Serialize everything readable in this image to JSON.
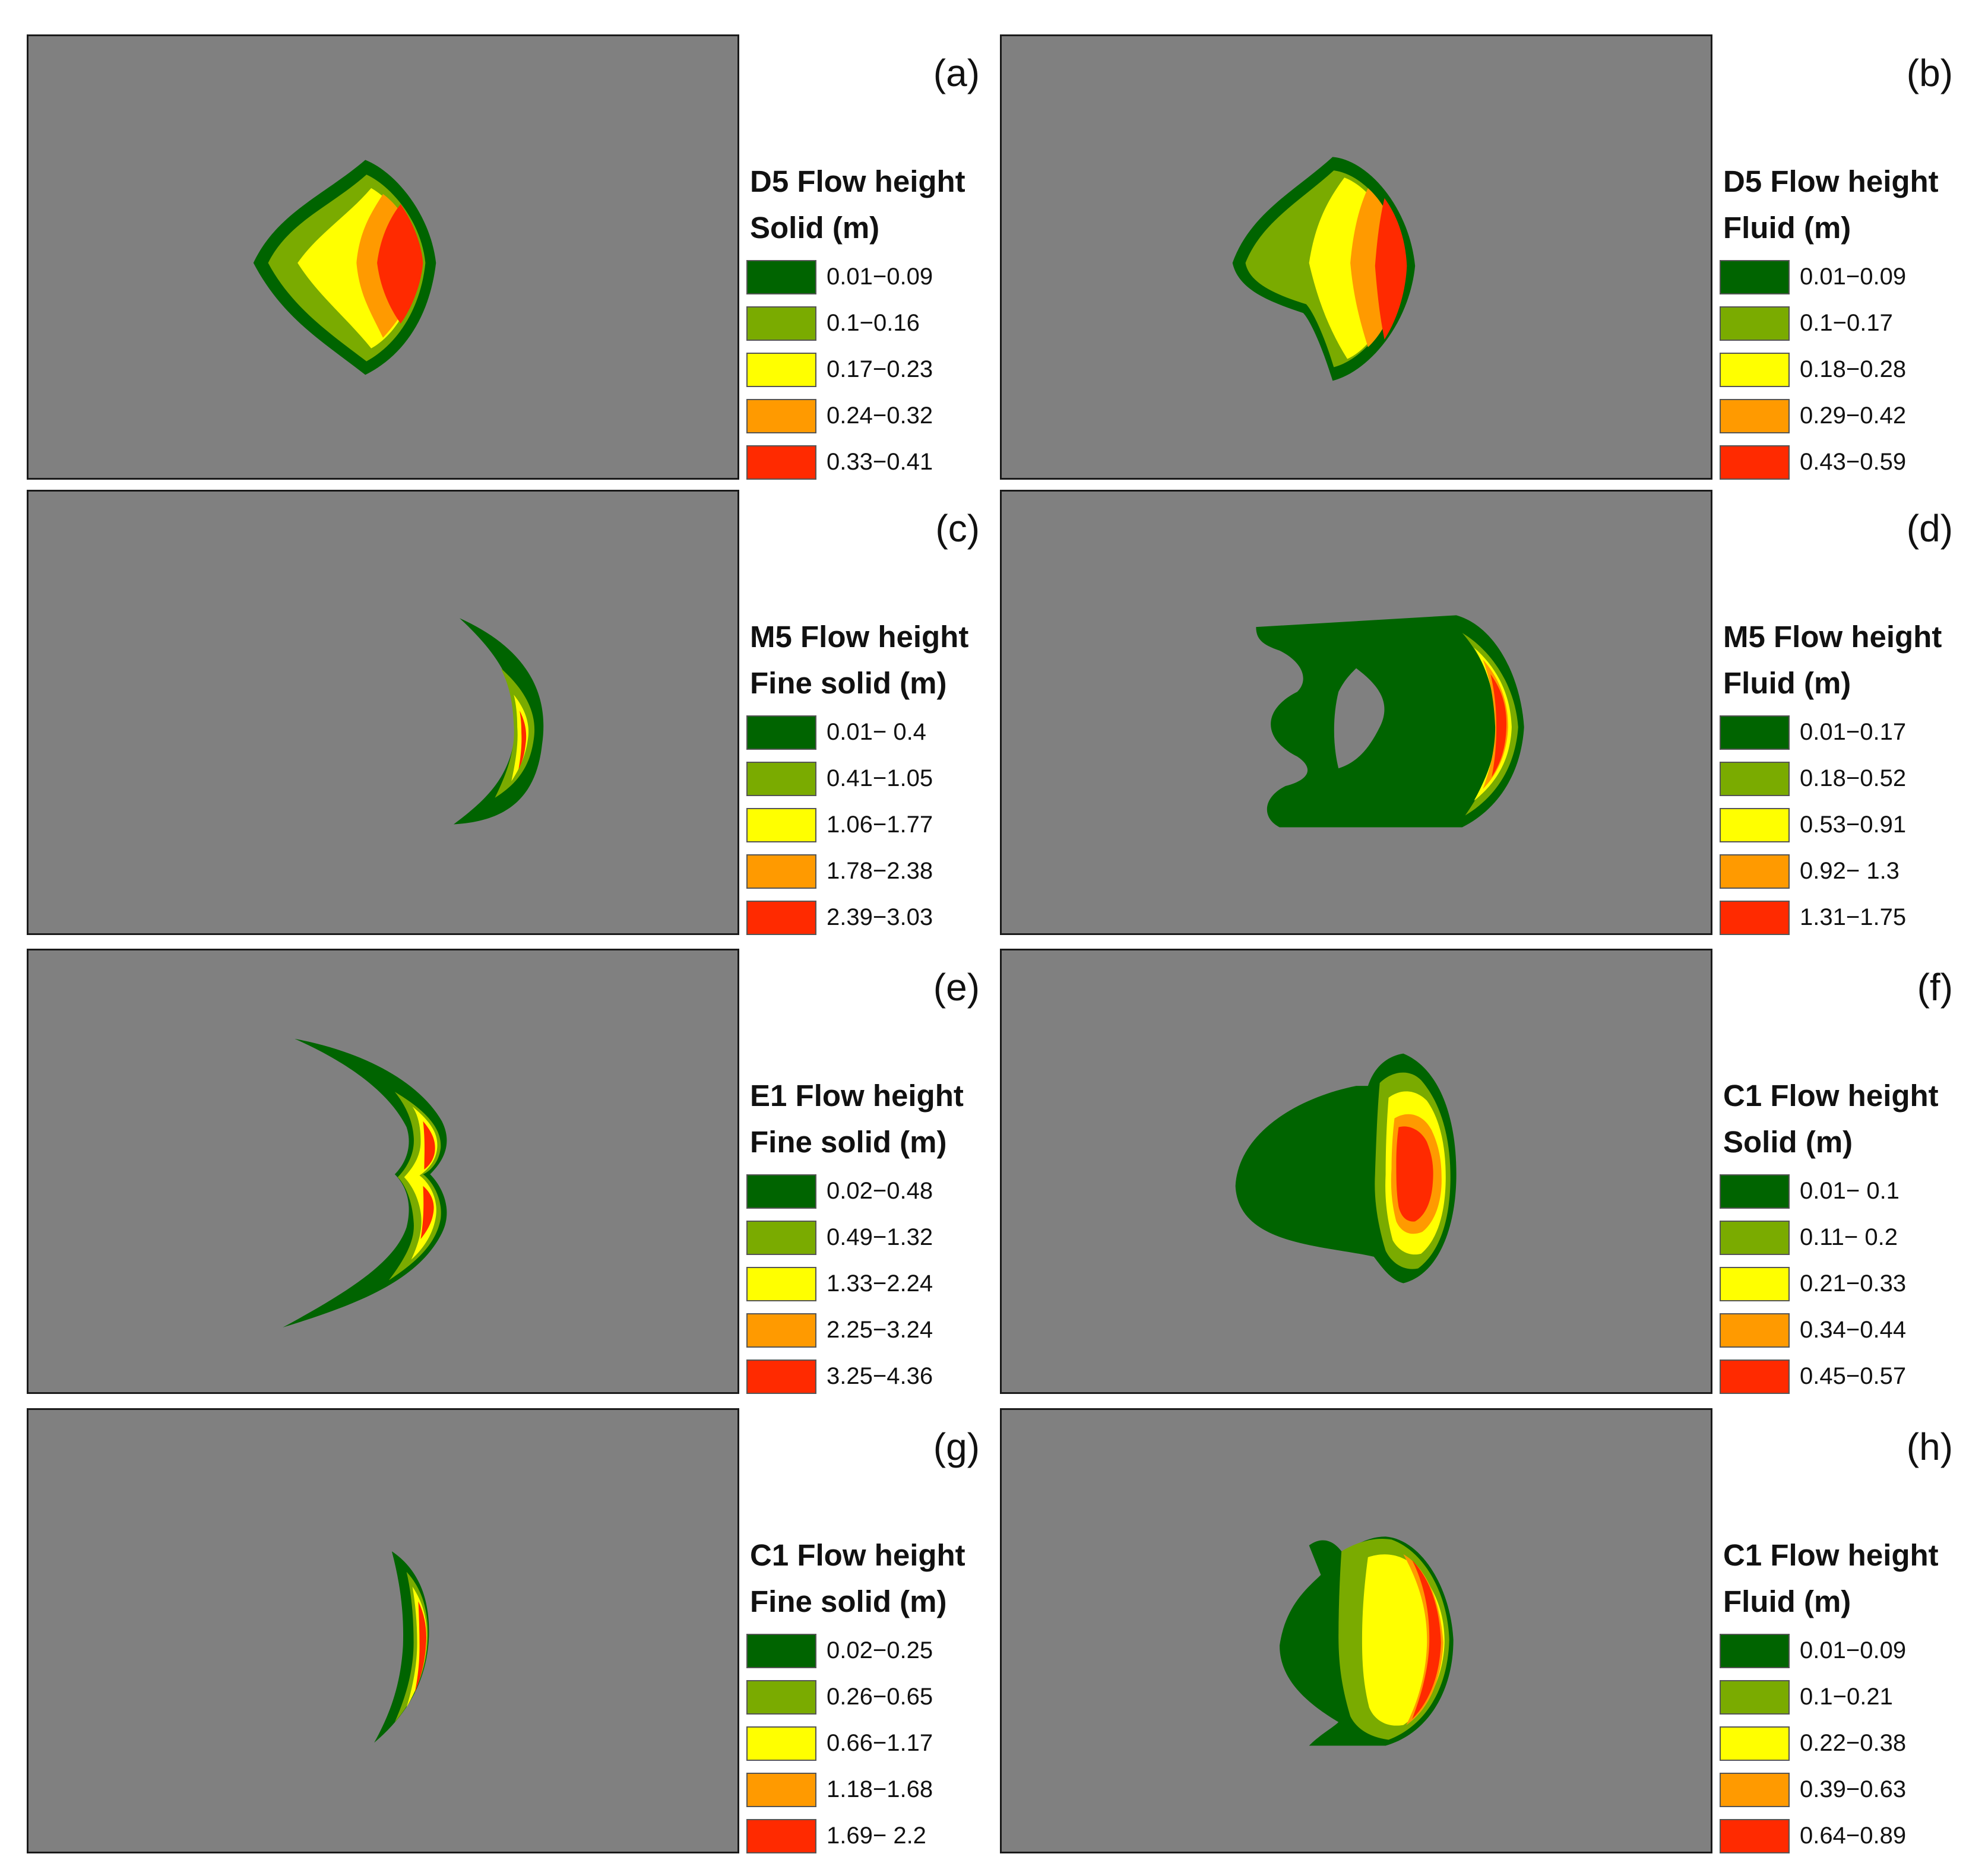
{
  "colors": {
    "background": "#808080",
    "class_colors": [
      "#006400",
      "#7aab00",
      "#ffff00",
      "#ff9a00",
      "#ff2a00"
    ]
  },
  "panels": [
    {
      "label": "(a)",
      "legend_title": "D5 Flow height",
      "legend_subtitle": "Solid (m)",
      "classes": [
        "0.01−0.09",
        "0.1−0.16",
        "0.17−0.23",
        "0.24−0.32",
        "0.33−0.41"
      ]
    },
    {
      "label": "(b)",
      "legend_title": "D5 Flow height",
      "legend_subtitle": "Fluid (m)",
      "classes": [
        "0.01−0.09",
        "0.1−0.17",
        "0.18−0.28",
        "0.29−0.42",
        "0.43−0.59"
      ]
    },
    {
      "label": "(c)",
      "legend_title": "M5 Flow height",
      "legend_subtitle": "Fine solid (m)",
      "classes": [
        "0.01− 0.4",
        "0.41−1.05",
        "1.06−1.77",
        "1.78−2.38",
        "2.39−3.03"
      ]
    },
    {
      "label": "(d)",
      "legend_title": "M5 Flow height",
      "legend_subtitle": "Fluid (m)",
      "classes": [
        "0.01−0.17",
        "0.18−0.52",
        "0.53−0.91",
        "0.92− 1.3",
        "1.31−1.75"
      ]
    },
    {
      "label": "(e)",
      "legend_title": "E1 Flow height",
      "legend_subtitle": "Fine solid (m)",
      "classes": [
        "0.02−0.48",
        "0.49−1.32",
        "1.33−2.24",
        "2.25−3.24",
        "3.25−4.36"
      ]
    },
    {
      "label": "(f)",
      "legend_title": "C1 Flow height",
      "legend_subtitle": "Solid (m)",
      "classes": [
        "0.01− 0.1",
        "0.11− 0.2",
        "0.21−0.33",
        "0.34−0.44",
        "0.45−0.57"
      ]
    },
    {
      "label": "(g)",
      "legend_title": "C1 Flow height",
      "legend_subtitle": "Fine solid (m)",
      "classes": [
        "0.02−0.25",
        "0.26−0.65",
        "0.66−1.17",
        "1.18−1.68",
        "1.69− 2.2"
      ]
    },
    {
      "label": "(h)",
      "legend_title": "C1 Flow height",
      "legend_subtitle": "Fluid (m)",
      "classes": [
        "0.01−0.09",
        "0.1−0.21",
        "0.22−0.38",
        "0.39−0.63",
        "0.64−0.89"
      ]
    }
  ]
}
